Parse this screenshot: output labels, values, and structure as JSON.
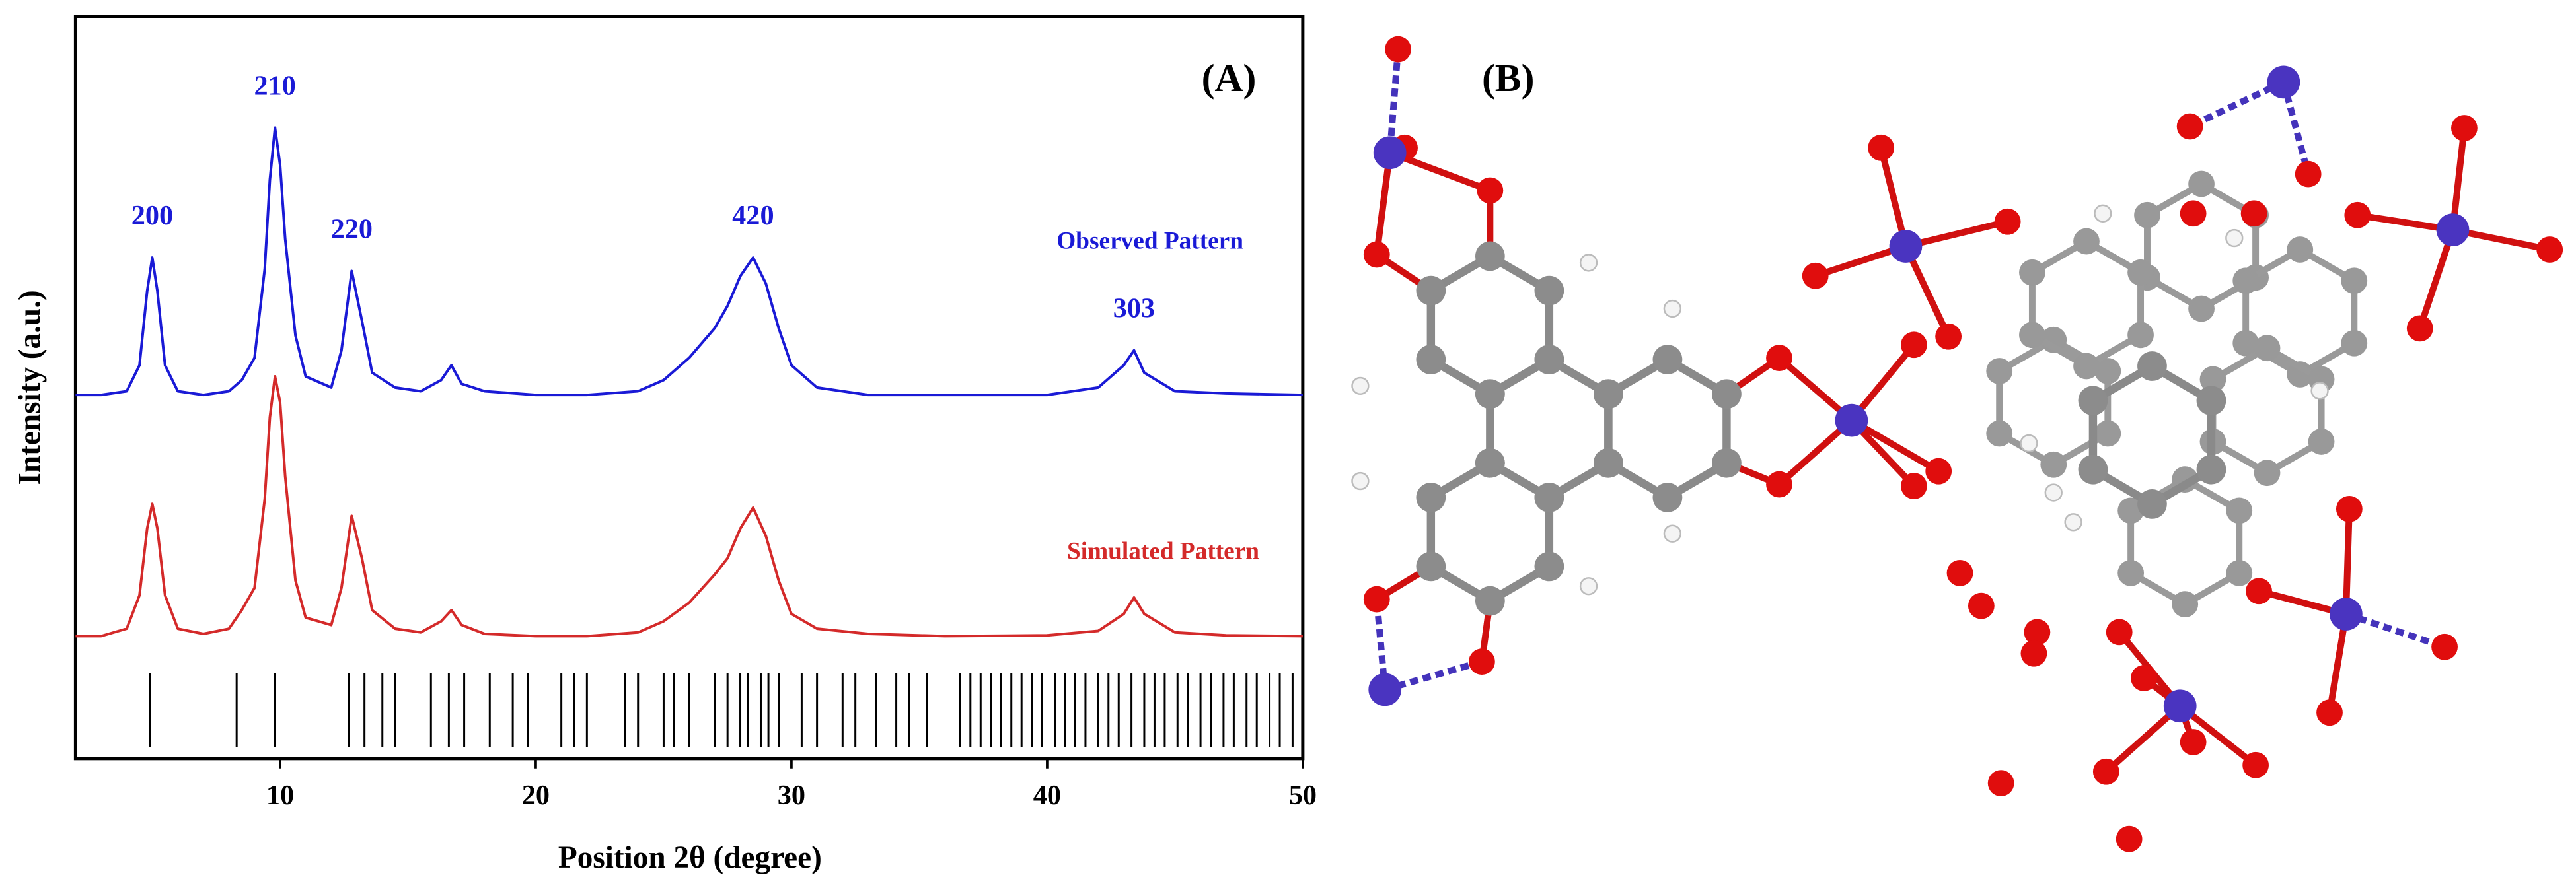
{
  "chart_data": {
    "type": "line",
    "panel_label": "(A)",
    "x_label": "Position 2θ (degree)",
    "y_label": "Intensity (a.u.)",
    "xlim": [
      2,
      50
    ],
    "xticks": [
      10,
      20,
      30,
      40,
      50
    ],
    "ylim": [
      0,
      100
    ],
    "x": [
      2,
      3,
      4,
      4.5,
      4.8,
      5.0,
      5.2,
      5.5,
      6,
      7,
      8,
      8.5,
      9,
      9.4,
      9.6,
      9.8,
      10.0,
      10.2,
      10.6,
      11,
      12,
      12.4,
      12.8,
      13.2,
      13.6,
      14.5,
      15.5,
      16.3,
      16.7,
      17.1,
      18,
      20,
      22,
      24,
      25,
      26,
      27,
      27.5,
      28,
      28.5,
      29,
      29.5,
      30,
      31,
      33,
      36,
      40,
      42,
      43,
      43.4,
      43.8,
      45,
      47,
      50
    ],
    "series": [
      {
        "name": "Observed Pattern",
        "color": "#1a1ad6",
        "values": [
          49,
          49,
          49.5,
          53,
          63,
          67.5,
          63,
          53,
          49.5,
          49,
          49.5,
          51,
          54,
          66,
          78,
          85,
          80,
          70,
          57,
          51.5,
          50,
          55,
          65.7,
          59,
          52,
          50,
          49.5,
          51,
          53,
          50.5,
          49.5,
          49,
          49,
          49.5,
          51,
          54,
          58,
          61,
          65,
          67.5,
          64,
          58,
          53,
          50,
          49,
          49,
          49,
          50,
          53,
          55,
          52,
          49.5,
          49.2,
          49
        ]
      },
      {
        "name": "Simulated Pattern",
        "color": "#d42a2a",
        "values": [
          16.5,
          16.5,
          17.5,
          22,
          31,
          34.3,
          31,
          22,
          17.5,
          16.8,
          17.5,
          20,
          23,
          35,
          46,
          51.5,
          48,
          38,
          24,
          19,
          18,
          23,
          32.7,
          27,
          20,
          17.5,
          17,
          18.5,
          20,
          18,
          16.8,
          16.5,
          16.5,
          17,
          18.5,
          21,
          24.8,
          27,
          31,
          33.8,
          30,
          24,
          19.5,
          17.5,
          16.8,
          16.5,
          16.6,
          17.2,
          19.5,
          21.7,
          19.5,
          17,
          16.6,
          16.5
        ]
      }
    ],
    "reflections": {
      "color": "#000000",
      "positions": [
        4.9,
        8.3,
        9.8,
        12.7,
        13.3,
        14.0,
        14.5,
        15.9,
        16.6,
        17.2,
        18.2,
        19.1,
        19.7,
        21.0,
        21.5,
        22.0,
        23.5,
        24.0,
        25.0,
        25.4,
        26.0,
        27.0,
        27.5,
        28.0,
        28.3,
        28.8,
        29.1,
        29.5,
        30.4,
        31.0,
        32.0,
        32.5,
        33.3,
        34.1,
        34.6,
        35.3,
        36.6,
        37.0,
        37.4,
        37.8,
        38.2,
        38.6,
        39.0,
        39.4,
        39.8,
        40.3,
        40.7,
        41.1,
        41.5,
        42.0,
        42.4,
        42.8,
        43.3,
        43.8,
        44.2,
        44.6,
        45.1,
        45.5,
        46.0,
        46.4,
        46.9,
        47.3,
        47.8,
        48.2,
        48.7,
        49.1,
        49.6
      ]
    },
    "annotations": [
      {
        "text": "200",
        "x": 5.0
      },
      {
        "text": "210",
        "x": 9.8
      },
      {
        "text": "220",
        "x": 12.8
      },
      {
        "text": "420",
        "x": 28.5
      },
      {
        "text": "303",
        "x": 43.4
      }
    ]
  },
  "panel_b": {
    "label": "(B)"
  }
}
